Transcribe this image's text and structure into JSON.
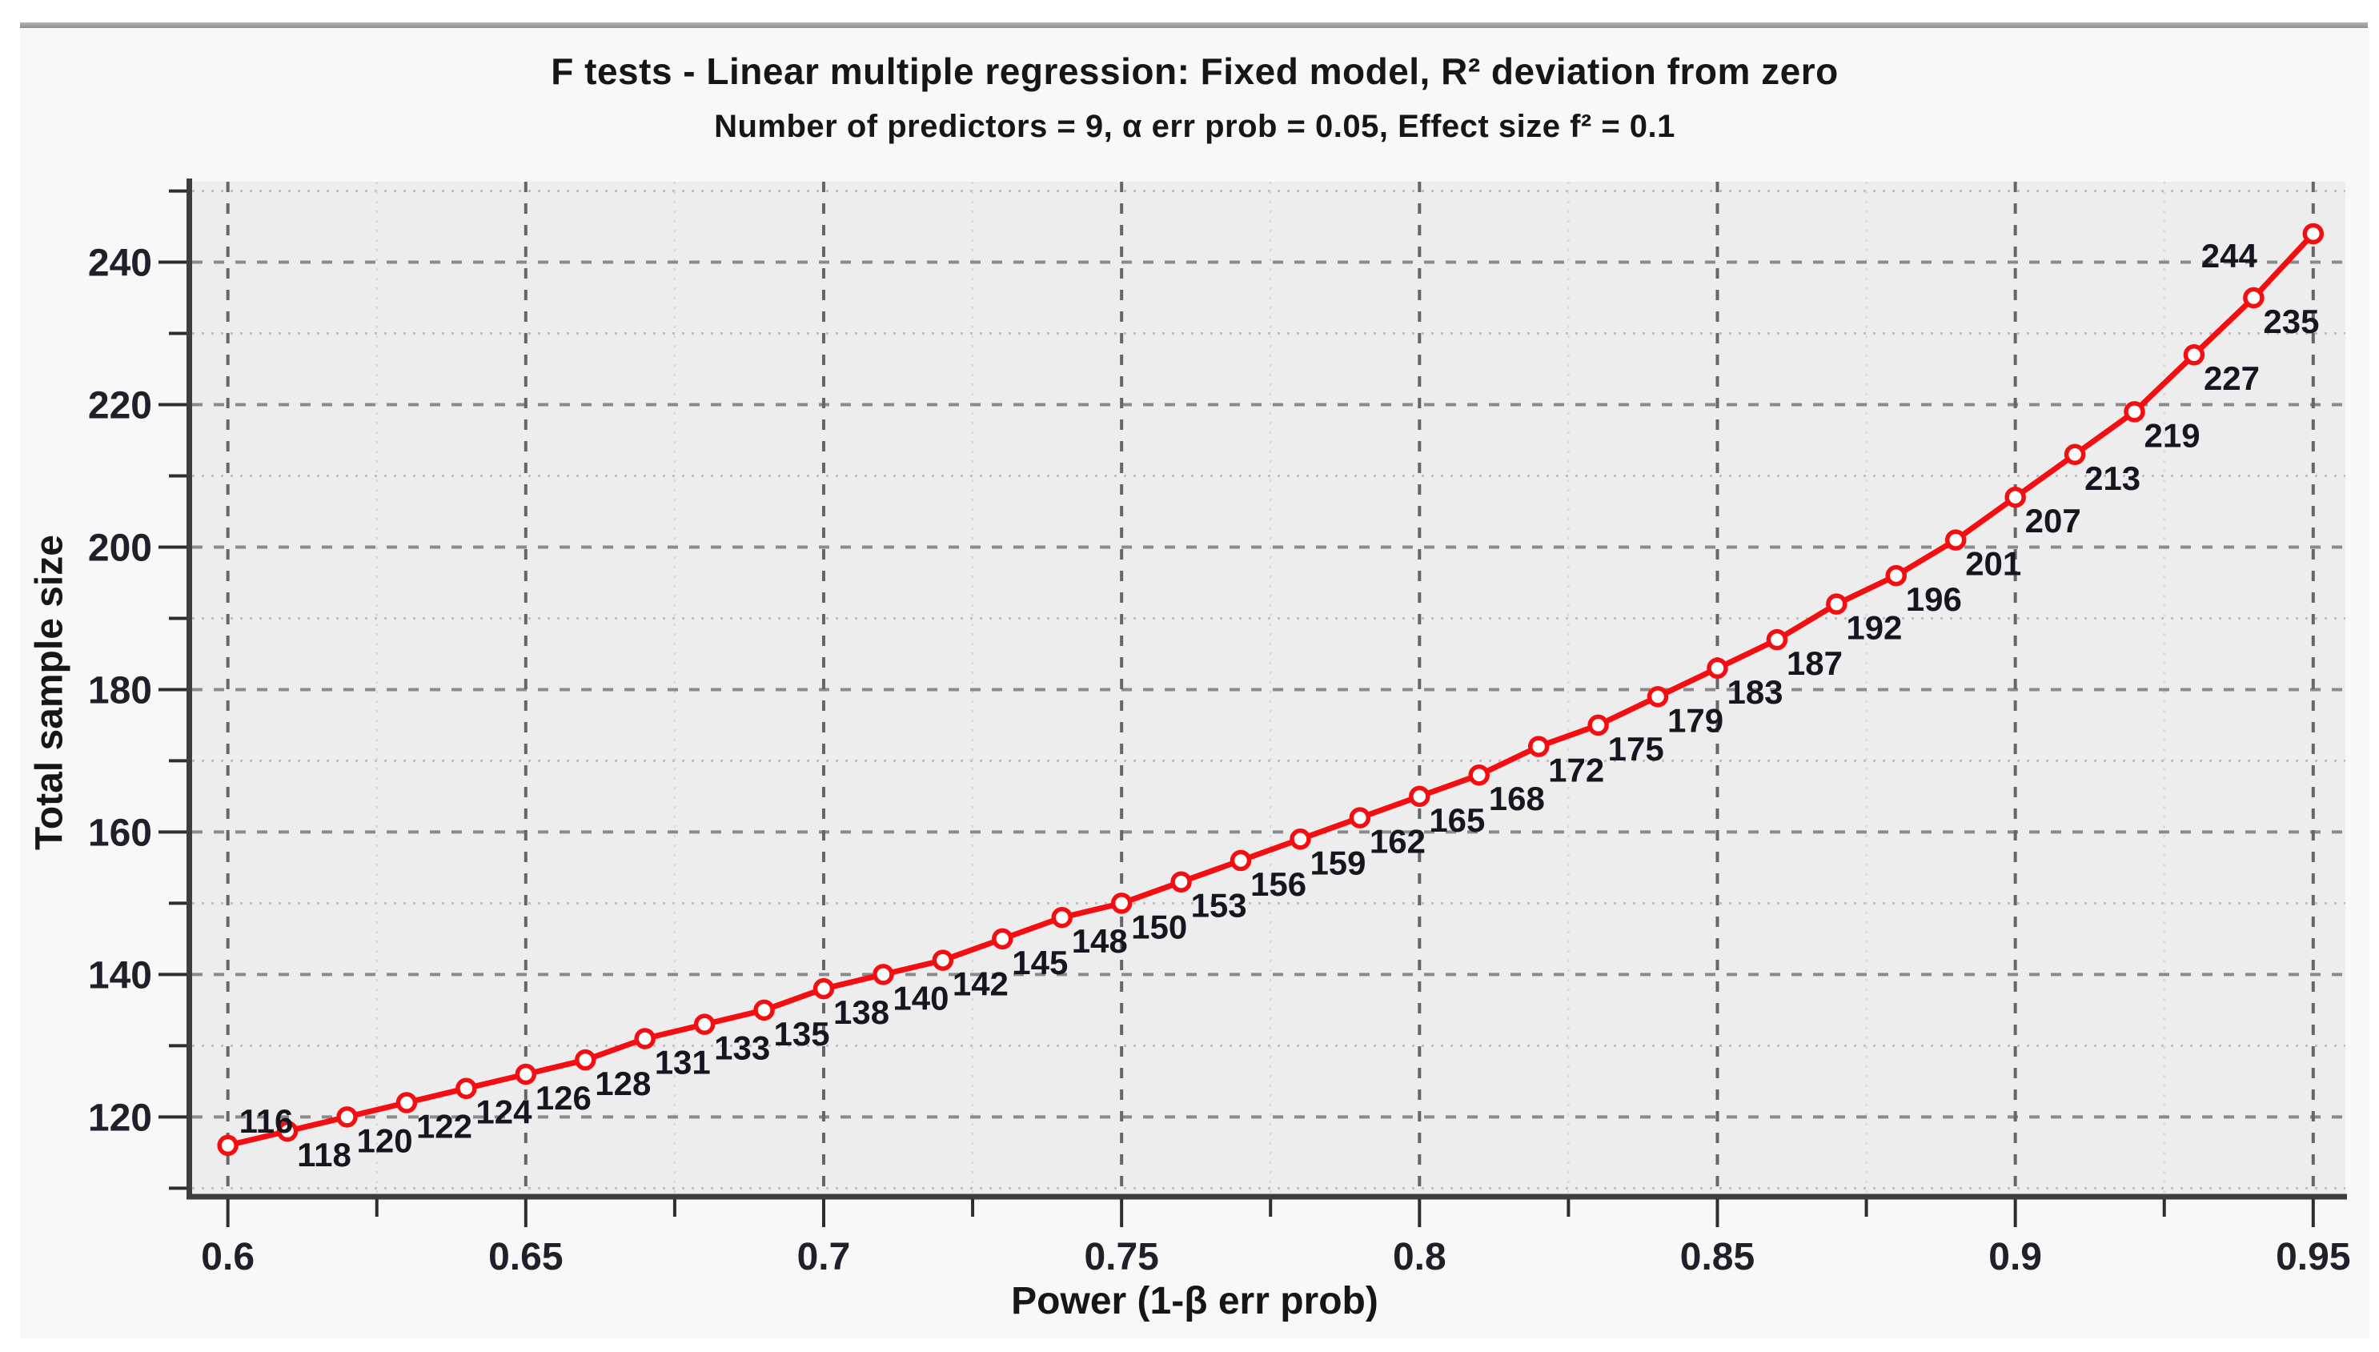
{
  "page": {
    "background": "#ffffff",
    "panel_background": "#f8f8f8",
    "divider_color": "#999999"
  },
  "chart_data": {
    "type": "line",
    "title": "F tests - Linear multiple regression: Fixed model, R² deviation from zero",
    "subtitle": "Number of predictors = 9, α err prob = 0.05, Effect size f² = 0.1",
    "xlabel": "Power (1-β err prob)",
    "ylabel": "Total sample size",
    "xlim": [
      0.594,
      0.9554
    ],
    "ylim": [
      108.8,
      251.3
    ],
    "plot_background": "#ededed",
    "grid": {
      "major": "dashed",
      "minor": "dotted",
      "legend": "none"
    },
    "marker": "open-circle",
    "series": [
      {
        "name": "Total sample size",
        "color": "#f40e11",
        "x": [
          0.6,
          0.61,
          0.62,
          0.63,
          0.64,
          0.65,
          0.66,
          0.67,
          0.68,
          0.69,
          0.7,
          0.71,
          0.72,
          0.73,
          0.74,
          0.75,
          0.76,
          0.77,
          0.78,
          0.79,
          0.8,
          0.81,
          0.82,
          0.83,
          0.84,
          0.85,
          0.86,
          0.87,
          0.88,
          0.89,
          0.9,
          0.91,
          0.92,
          0.93,
          0.94,
          0.95
        ],
        "y": [
          116,
          118,
          120,
          122,
          124,
          126,
          128,
          131,
          133,
          135,
          138,
          140,
          142,
          145,
          148,
          150,
          153,
          156,
          159,
          162,
          165,
          168,
          172,
          175,
          179,
          183,
          187,
          192,
          196,
          201,
          207,
          213,
          219,
          227,
          235,
          244
        ],
        "point_labels": [
          "116",
          "118",
          "120",
          "122",
          "124",
          "126",
          "128",
          "131",
          "133",
          "135",
          "138",
          "140",
          "142",
          "145",
          "148",
          "150",
          "153",
          "156",
          "159",
          "162",
          "165",
          "168",
          "172",
          "175",
          "179",
          "183",
          "187",
          "192",
          "196",
          "201",
          "207",
          "213",
          "219",
          "227",
          "235",
          "244"
        ]
      }
    ],
    "x_major_ticks": {
      "values": [
        0.6,
        0.65,
        0.7,
        0.75,
        0.8,
        0.85,
        0.9,
        0.95
      ],
      "labels": [
        "0.6",
        "0.65",
        "0.7",
        "0.75",
        "0.8",
        "0.85",
        "0.9",
        "0.95"
      ]
    },
    "x_minor_ticks": [
      0.625,
      0.675,
      0.725,
      0.775,
      0.825,
      0.875,
      0.925
    ],
    "y_major_ticks": {
      "values": [
        120,
        140,
        160,
        180,
        200,
        220,
        240
      ],
      "labels": [
        "120",
        "140",
        "160",
        "180",
        "200",
        "220",
        "240"
      ]
    },
    "y_minor_ticks": [
      110,
      130,
      150,
      170,
      190,
      210,
      230,
      250
    ]
  }
}
